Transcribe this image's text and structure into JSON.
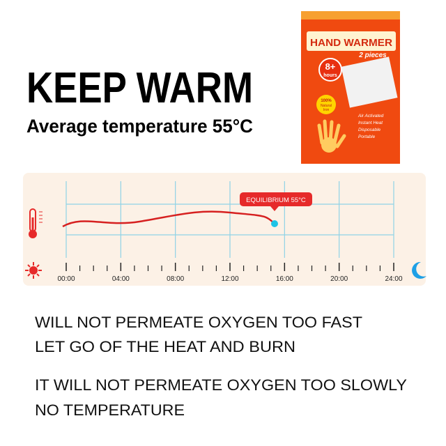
{
  "header": {
    "title": "KEEP WARM",
    "subtitle": "Average temperature 55°C"
  },
  "package": {
    "title": "HAND WARMER",
    "count": "2 pieces",
    "duration_top": "8+",
    "duration_unit": "hours",
    "badge": [
      "100%",
      "Natural",
      "Iron"
    ],
    "features": [
      "Air Activated",
      "Instant Heat",
      "Disposable",
      "Portable"
    ]
  },
  "timeline": {
    "ticks": [
      "00:00",
      "04:00",
      "08:00",
      "12:00",
      "16:00",
      "20:00",
      "24:00"
    ],
    "callout": "EQUILIBRIUM 55°C"
  },
  "notes": [
    "WILL NOT PERMEATE OXYGEN TOO FAST",
    "LET GO OF THE HEAT AND BURN",
    "IT WILL NOT PERMEATE OXYGEN TOO SLOWLY",
    "NO TEMPERATURE"
  ]
}
